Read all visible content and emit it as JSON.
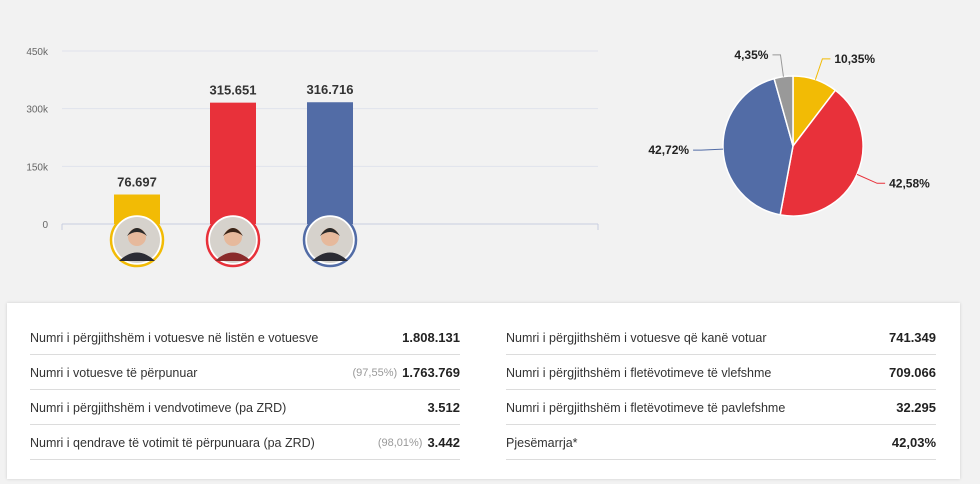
{
  "chart_data": [
    {
      "type": "bar",
      "categories": [
        "",
        "",
        ""
      ],
      "values": [
        76697,
        315651,
        316716
      ],
      "value_labels": [
        "76.697",
        "315.651",
        "316.716"
      ],
      "colors": [
        "#f2bb05",
        "#e8313a",
        "#526ca6"
      ],
      "yticks": [
        "0",
        "150k",
        "300k",
        "450k"
      ],
      "ytick_values": [
        0,
        150000,
        300000,
        450000
      ],
      "ylim": [
        0,
        450000
      ],
      "grid": true
    },
    {
      "type": "pie",
      "values": [
        10.35,
        42.58,
        42.72,
        4.35
      ],
      "labels": [
        "10,35%",
        "42,58%",
        "42,72%",
        "4,35%"
      ],
      "colors": [
        "#f2bb05",
        "#e8313a",
        "#526ca6",
        "#999999"
      ]
    }
  ],
  "stats": {
    "left": [
      {
        "label": "Numri i përgjithshëm i votuesve në listën e votuesve",
        "pct": "",
        "value": "1.808.131"
      },
      {
        "label": "Numri i votuesve të përpunuar",
        "pct": "(97,55%)",
        "value": "1.763.769"
      },
      {
        "label": "Numri i përgjithshëm i vendvotimeve (pa ZRD)",
        "pct": "",
        "value": "3.512"
      },
      {
        "label": "Numri i qendrave të votimit të përpunuara (pa ZRD)",
        "pct": "(98,01%)",
        "value": "3.442"
      }
    ],
    "right": [
      {
        "label": "Numri i përgjithshëm i votuesve që kanë votuar",
        "pct": "",
        "value": "741.349"
      },
      {
        "label": "Numri i përgjithshëm i fletëvotimeve të vlefshme",
        "pct": "",
        "value": "709.066"
      },
      {
        "label": "Numri i përgjithshëm i fletëvotimeve të pavlefshme",
        "pct": "",
        "value": "32.295"
      },
      {
        "label": "Pjesëmarrja*",
        "pct": "",
        "value": "42,03%"
      }
    ]
  },
  "avatars": [
    "candidate-1-photo",
    "candidate-2-photo",
    "candidate-3-photo"
  ]
}
